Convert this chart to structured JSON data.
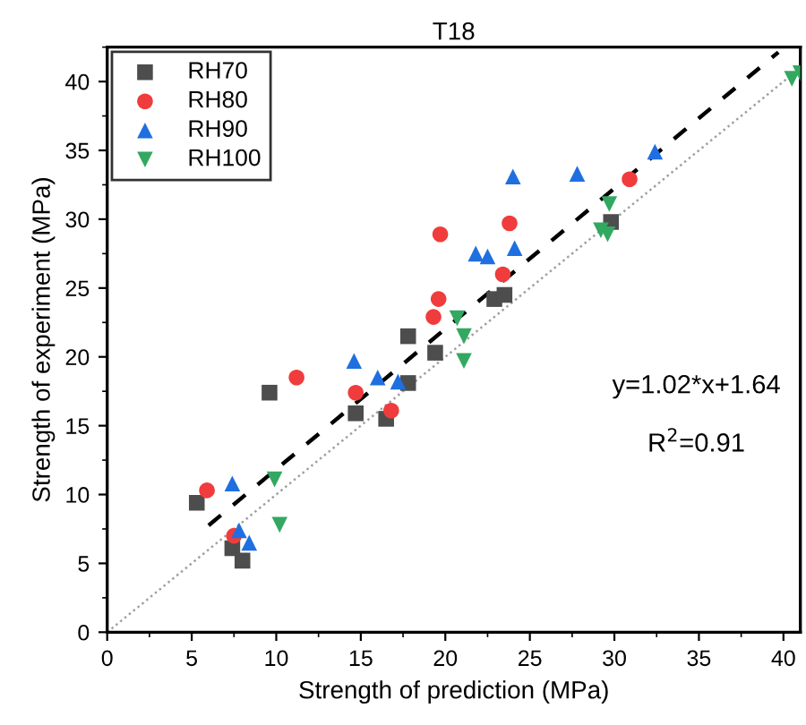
{
  "chart_data": {
    "type": "scatter",
    "title": "T18",
    "xlabel": "Strength of prediction (MPa)",
    "ylabel": "Strength of experiment (MPa)",
    "xlim": [
      0,
      41
    ],
    "ylim": [
      0,
      42.5
    ],
    "xticks": [
      0,
      5,
      10,
      15,
      20,
      25,
      30,
      35,
      40
    ],
    "yticks": [
      0,
      5,
      10,
      15,
      20,
      25,
      30,
      35,
      40
    ],
    "grid": false,
    "legend": "top left",
    "series": [
      {
        "name": "RH70",
        "color": "#4d4d4d",
        "marker": "square",
        "x": [
          5.3,
          7.4,
          8.0,
          9.6,
          14.7,
          16.5,
          17.8,
          17.8,
          19.4,
          22.9,
          23.5,
          29.8
        ],
        "values": [
          9.4,
          6.1,
          5.2,
          17.4,
          15.9,
          15.5,
          18.1,
          21.5,
          20.3,
          24.2,
          24.5,
          29.8
        ]
      },
      {
        "name": "RH80",
        "color": "#f03c3c",
        "marker": "circle",
        "x": [
          5.9,
          7.5,
          11.2,
          14.7,
          16.8,
          19.3,
          19.6,
          19.7,
          23.4,
          23.8,
          30.9
        ],
        "values": [
          10.3,
          7.0,
          18.5,
          17.4,
          16.1,
          22.9,
          24.2,
          28.9,
          26.0,
          29.7,
          32.9
        ]
      },
      {
        "name": "RH90",
        "color": "#1f6fe0",
        "marker": "triangle",
        "x": [
          7.4,
          7.8,
          8.4,
          14.6,
          16.0,
          17.2,
          21.8,
          22.5,
          24.1,
          24.0,
          27.8,
          32.4
        ],
        "values": [
          10.8,
          7.4,
          6.5,
          19.7,
          18.5,
          18.2,
          27.5,
          27.3,
          27.9,
          33.1,
          33.3,
          34.9
        ]
      },
      {
        "name": "RH100",
        "color": "#33a860",
        "marker": "triangle_down",
        "x": [
          9.9,
          10.2,
          20.7,
          21.1,
          21.1,
          29.2,
          29.6,
          29.7,
          40.5,
          41.0
        ],
        "values": [
          11.1,
          7.8,
          22.8,
          21.5,
          19.7,
          29.2,
          28.9,
          31.1,
          40.2,
          40.6
        ]
      },
      {
        "type": "line",
        "color": "#000000",
        "line_style": "dashed",
        "x": [
          6.0,
          39.7
        ],
        "values": [
          7.76,
          42.13
        ]
      },
      {
        "type": "line",
        "color": "#a0a0a0",
        "line_style": "dotted",
        "x": [
          0,
          41
        ],
        "values": [
          0,
          41
        ]
      }
    ],
    "annotations": [
      {
        "text": "y=1.02*x+1.64"
      },
      {
        "text": "R$^{2}$=0.91"
      }
    ]
  }
}
